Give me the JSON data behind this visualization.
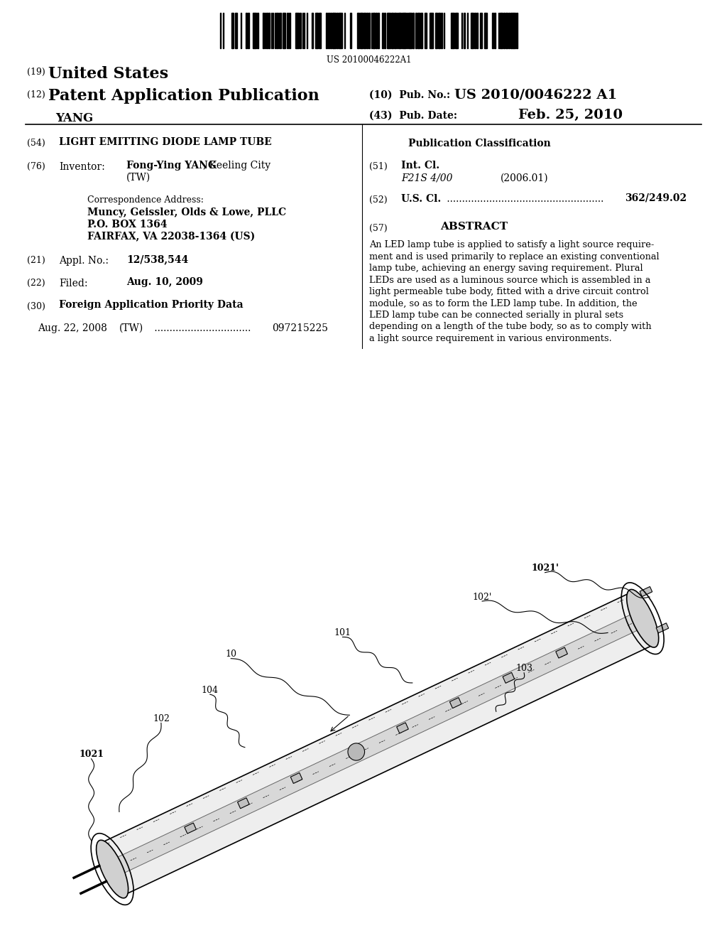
{
  "bg_color": "#ffffff",
  "barcode_text": "US 20100046222A1",
  "abstract_lines": [
    "An LED lamp tube is applied to satisfy a light source require-",
    "ment and is used primarily to replace an existing conventional",
    "lamp tube, achieving an energy saving requirement. Plural",
    "LEDs are used as a luminous source which is assembled in a",
    "light permeable tube body, fitted with a drive circuit control",
    "module, so as to form the LED lamp tube. In addition, the",
    "LED lamp tube can be connected serially in plural sets",
    "depending on a length of the tube body, so as to comply with",
    "a light source requirement in various environments."
  ]
}
